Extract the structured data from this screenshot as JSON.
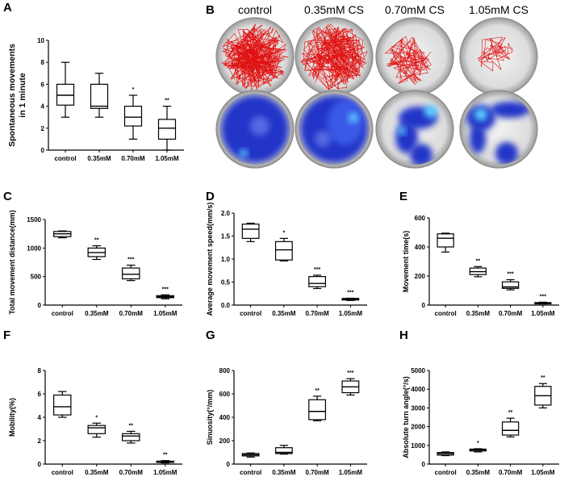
{
  "panel_b": {
    "letter": "B",
    "conditions": [
      "control",
      "0.35mM CS",
      "0.70mM CS",
      "1.05mM CS"
    ]
  },
  "chart_data": [
    {
      "panel": "A",
      "type": "box",
      "categories": [
        "control",
        "0.35mM",
        "0.70mM",
        "1.05mM"
      ],
      "ylabel": "Spontaneous movements in 1 minute",
      "ylim": [
        0,
        10
      ],
      "yticks": [
        0,
        2,
        4,
        6,
        8,
        10
      ],
      "boxes": [
        {
          "min": 3,
          "q1": 4.1,
          "median": 5,
          "q3": 6,
          "max": 8
        },
        {
          "min": 3,
          "q1": 3.8,
          "median": 4,
          "q3": 6,
          "max": 7
        },
        {
          "min": 1,
          "q1": 2.2,
          "median": 3,
          "q3": 4,
          "max": 5
        },
        {
          "min": 0,
          "q1": 1,
          "median": 2,
          "q3": 2.8,
          "max": 4
        }
      ],
      "significance": [
        "",
        "",
        "*",
        "**"
      ]
    },
    {
      "panel": "C",
      "type": "box",
      "categories": [
        "control",
        "0.35mM",
        "0.70mM",
        "1.05mM"
      ],
      "ylabel": "Total movement distance(mm)",
      "ylim": [
        0,
        1500
      ],
      "yticks": [
        0,
        500,
        1000,
        1500
      ],
      "boxes": [
        {
          "min": 1180,
          "q1": 1200,
          "median": 1250,
          "q3": 1290,
          "max": 1300
        },
        {
          "min": 800,
          "q1": 850,
          "median": 920,
          "q3": 1000,
          "max": 1040
        },
        {
          "min": 430,
          "q1": 460,
          "median": 540,
          "q3": 650,
          "max": 700
        },
        {
          "min": 110,
          "q1": 130,
          "median": 145,
          "q3": 165,
          "max": 180
        }
      ],
      "significance": [
        "",
        "**",
        "***",
        "***"
      ]
    },
    {
      "panel": "D",
      "type": "box",
      "categories": [
        "control",
        "0.35mM",
        "0.70mM",
        "1.05mM"
      ],
      "ylabel": "Average movement speed(mm/s)",
      "ylim": [
        0,
        2.0
      ],
      "yticks": [
        0.0,
        0.5,
        1.0,
        1.5,
        2.0
      ],
      "tick_decimals": 1,
      "boxes": [
        {
          "min": 1.38,
          "q1": 1.45,
          "median": 1.65,
          "q3": 1.76,
          "max": 1.78
        },
        {
          "min": 0.96,
          "q1": 0.98,
          "median": 1.2,
          "q3": 1.38,
          "max": 1.45
        },
        {
          "min": 0.36,
          "q1": 0.4,
          "median": 0.47,
          "q3": 0.62,
          "max": 0.65
        },
        {
          "min": 0.1,
          "q1": 0.11,
          "median": 0.13,
          "q3": 0.145,
          "max": 0.15
        }
      ],
      "significance": [
        "",
        "*",
        "***",
        "***"
      ]
    },
    {
      "panel": "E",
      "type": "box",
      "categories": [
        "control",
        "0.35mM",
        "0.70mM",
        "1.05mM"
      ],
      "ylabel": "Movement time(s)",
      "ylim": [
        0,
        600
      ],
      "yticks": [
        0,
        200,
        400,
        600
      ],
      "boxes": [
        {
          "min": 365,
          "q1": 400,
          "median": 460,
          "q3": 490,
          "max": 495
        },
        {
          "min": 195,
          "q1": 210,
          "median": 230,
          "q3": 255,
          "max": 265
        },
        {
          "min": 105,
          "q1": 115,
          "median": 125,
          "q3": 160,
          "max": 175
        },
        {
          "min": 8,
          "q1": 10,
          "median": 13,
          "q3": 17,
          "max": 20
        }
      ],
      "significance": [
        "",
        "**",
        "***",
        "***"
      ]
    },
    {
      "panel": "F",
      "type": "box",
      "categories": [
        "control",
        "0.35mM",
        "0.70mM",
        "1.05mM"
      ],
      "ylabel": "Mobility(%)",
      "ylim": [
        0,
        8
      ],
      "yticks": [
        0,
        2,
        4,
        6,
        8
      ],
      "boxes": [
        {
          "min": 4.0,
          "q1": 4.2,
          "median": 4.9,
          "q3": 5.9,
          "max": 6.2
        },
        {
          "min": 2.3,
          "q1": 2.6,
          "median": 3.1,
          "q3": 3.3,
          "max": 3.5
        },
        {
          "min": 1.8,
          "q1": 2.0,
          "median": 2.4,
          "q3": 2.6,
          "max": 2.8
        },
        {
          "min": 0.1,
          "q1": 0.15,
          "median": 0.2,
          "q3": 0.25,
          "max": 0.3
        }
      ],
      "significance": [
        "",
        "*",
        "**",
        "**"
      ]
    },
    {
      "panel": "G",
      "type": "box",
      "categories": [
        "control",
        "0.35mM",
        "0.70mM",
        "1.05mM"
      ],
      "ylabel": "Sinuosity(°/mm)",
      "ylim": [
        0,
        800
      ],
      "yticks": [
        0,
        200,
        400,
        600,
        800
      ],
      "boxes": [
        {
          "min": 60,
          "q1": 70,
          "median": 80,
          "q3": 90,
          "max": 95
        },
        {
          "min": 85,
          "q1": 90,
          "median": 100,
          "q3": 140,
          "max": 160
        },
        {
          "min": 370,
          "q1": 380,
          "median": 450,
          "q3": 550,
          "max": 580
        },
        {
          "min": 590,
          "q1": 610,
          "median": 660,
          "q3": 710,
          "max": 730
        }
      ],
      "significance": [
        "",
        "",
        "**",
        "***"
      ]
    },
    {
      "panel": "H",
      "type": "box",
      "categories": [
        "control",
        "0.35mM",
        "0.70mM",
        "1.05mM"
      ],
      "ylabel": "Absolute turn angle(°/s)",
      "ylim": [
        0,
        5000
      ],
      "yticks": [
        0,
        1000,
        2000,
        3000,
        4000,
        5000
      ],
      "boxes": [
        {
          "min": 450,
          "q1": 480,
          "median": 560,
          "q3": 620,
          "max": 650
        },
        {
          "min": 650,
          "q1": 700,
          "median": 760,
          "q3": 800,
          "max": 820
        },
        {
          "min": 1450,
          "q1": 1550,
          "median": 1800,
          "q3": 2250,
          "max": 2450
        },
        {
          "min": 3000,
          "q1": 3150,
          "median": 3650,
          "q3": 4150,
          "max": 4300
        }
      ],
      "significance": [
        "",
        "*",
        "**",
        "**"
      ]
    }
  ]
}
